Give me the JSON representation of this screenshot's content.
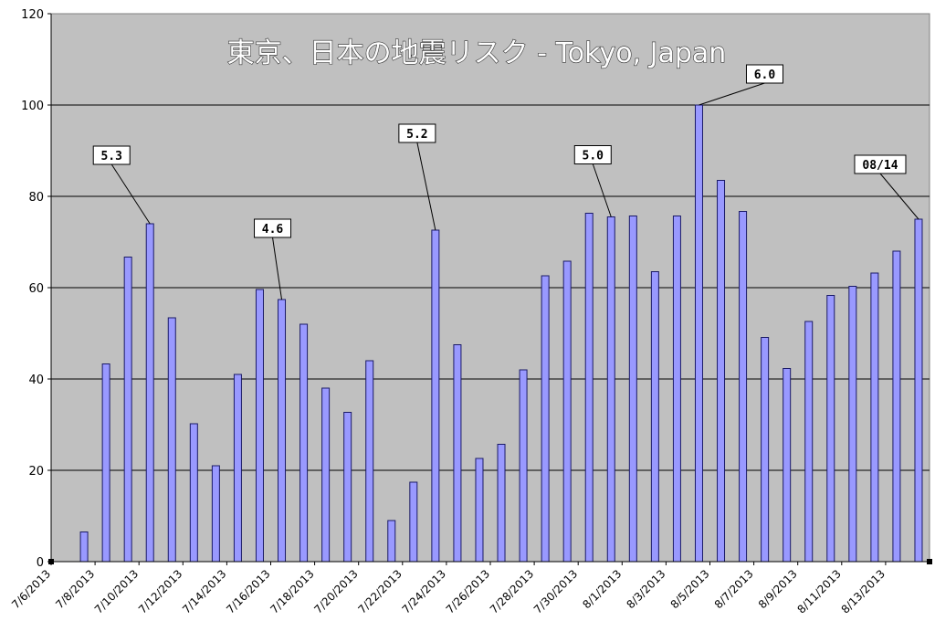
{
  "chart_data": {
    "type": "bar",
    "title": "東京、日本の地震リスク - Tokyo, Japan",
    "ylim": [
      0,
      120
    ],
    "yticks": [
      0,
      20,
      40,
      60,
      80,
      100,
      120
    ],
    "grid": true,
    "x_tick_labels": [
      "7/6/2013",
      "7/8/2013",
      "7/10/2013",
      "7/12/2013",
      "7/14/2013",
      "7/16/2013",
      "7/18/2013",
      "7/20/2013",
      "7/22/2013",
      "7/24/2013",
      "7/26/2013",
      "7/28/2013",
      "7/30/2013",
      "8/1/2013",
      "8/3/2013",
      "8/5/2013",
      "8/7/2013",
      "8/9/2013",
      "8/11/2013",
      "8/13/2013"
    ],
    "categories": [
      "7/7/2013",
      "7/8/2013",
      "7/9/2013",
      "7/10/2013",
      "7/11/2013",
      "7/12/2013",
      "7/13/2013",
      "7/14/2013",
      "7/15/2013",
      "7/16/2013",
      "7/17/2013",
      "7/18/2013",
      "7/19/2013",
      "7/20/2013",
      "7/21/2013",
      "7/22/2013",
      "7/23/2013",
      "7/24/2013",
      "7/25/2013",
      "7/26/2013",
      "7/27/2013",
      "7/28/2013",
      "7/29/2013",
      "7/30/2013",
      "7/31/2013",
      "8/1/2013",
      "8/2/2013",
      "8/3/2013",
      "8/4/2013",
      "8/5/2013",
      "8/6/2013",
      "8/7/2013",
      "8/8/2013",
      "8/9/2013",
      "8/10/2013",
      "8/11/2013",
      "8/12/2013",
      "8/13/2013",
      "8/14/2013"
    ],
    "values": [
      6.5,
      43.3,
      66.7,
      74.0,
      53.4,
      30.2,
      21.0,
      41.0,
      59.6,
      57.4,
      52.0,
      38.0,
      32.7,
      44.0,
      9.0,
      17.4,
      72.6,
      47.5,
      22.6,
      25.7,
      42.0,
      62.6,
      65.8,
      76.3,
      75.5,
      75.7,
      63.5,
      75.7,
      100.0,
      83.5,
      76.7,
      49.1,
      42.3,
      52.6,
      58.3,
      60.3,
      63.2,
      68.0,
      75.0
    ],
    "annotations": [
      {
        "text": "5.3",
        "category": "7/10/2013"
      },
      {
        "text": "4.6",
        "category": "7/16/2013"
      },
      {
        "text": "5.2",
        "category": "7/23/2013"
      },
      {
        "text": "5.0",
        "category": "7/31/2013"
      },
      {
        "text": "6.0",
        "category": "8/4/2013"
      },
      {
        "text": "08/14",
        "category": "8/14/2013"
      }
    ],
    "colors": {
      "plot_bg": "#c0c0c0",
      "bar_fill": "#9999ff",
      "bar_stroke": "#1a1a66",
      "gridline": "#000000"
    }
  }
}
